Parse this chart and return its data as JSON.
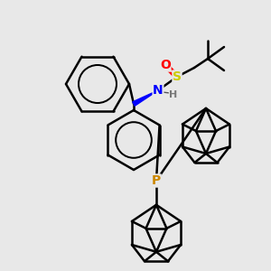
{
  "background_color": "#e8e8e8",
  "atom_colors": {
    "O": "#ff0000",
    "S": "#cccc00",
    "N": "#0000ff",
    "P": "#cc8800",
    "H": "#555555",
    "C": "#000000"
  },
  "bond_color": "#000000",
  "bond_width": 1.8,
  "figsize": [
    3.0,
    3.0
  ],
  "dpi": 100,
  "xlim": [
    0,
    300
  ],
  "ylim": [
    0,
    300
  ]
}
